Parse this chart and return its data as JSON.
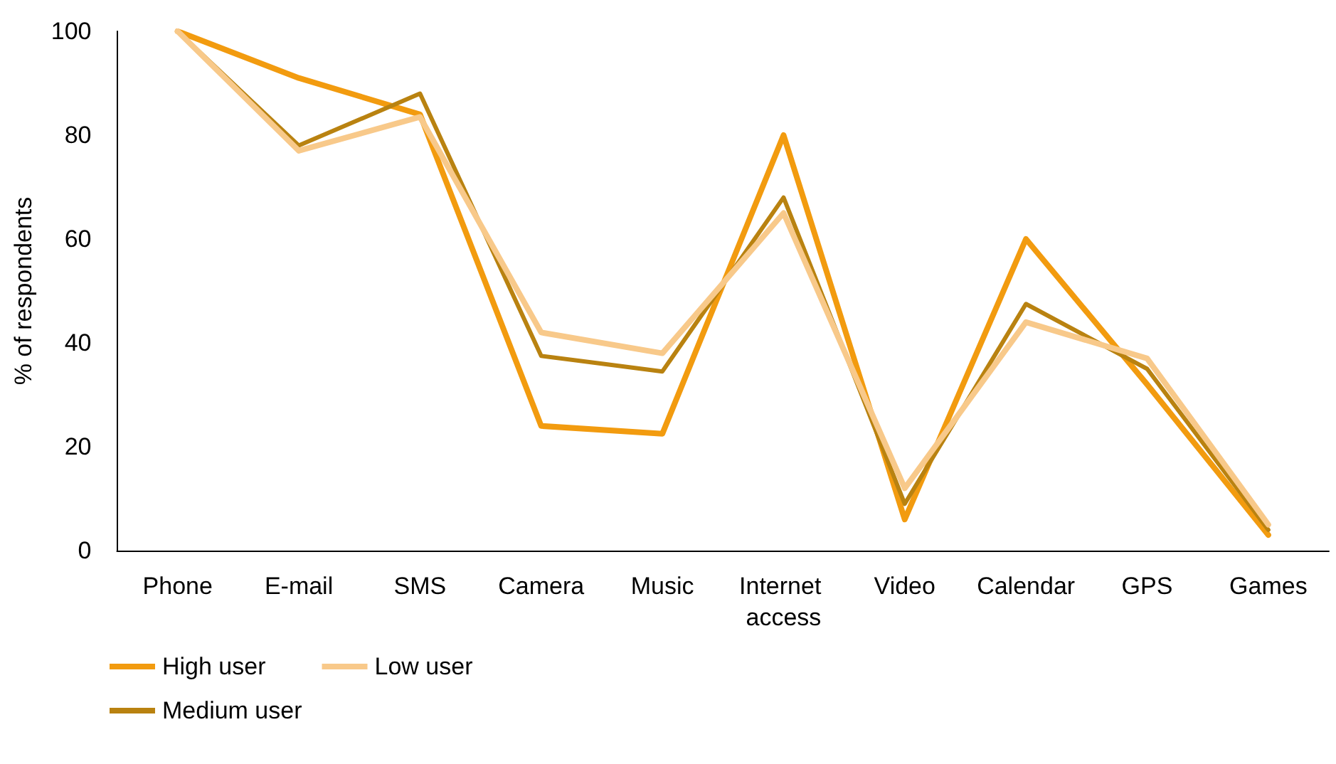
{
  "chart_data": {
    "type": "line",
    "ylabel": "% of respondents",
    "categories": [
      "Phone",
      "E-mail",
      "SMS",
      "Camera",
      "Music",
      "Internet access",
      "Video",
      "Calendar",
      "GPS",
      "Games"
    ],
    "series": [
      {
        "name": "High user",
        "color": "#f29b0f",
        "values": [
          100,
          91,
          84,
          24,
          22.5,
          80,
          6,
          60,
          32,
          3
        ]
      },
      {
        "name": "Medium user",
        "color": "#b98210",
        "values": [
          100,
          78,
          88,
          37.5,
          34.5,
          68,
          9,
          47.5,
          35,
          4
        ]
      },
      {
        "name": "Low user",
        "color": "#f8c98a",
        "values": [
          100,
          77,
          83.5,
          42,
          38,
          65,
          12,
          44,
          37,
          5
        ]
      }
    ],
    "ylim": [
      0,
      100
    ],
    "yticks": [
      0,
      20,
      40,
      60,
      80,
      100
    ],
    "grid": false,
    "legend": "bottom left",
    "marker": "none",
    "line_style": "solid"
  }
}
